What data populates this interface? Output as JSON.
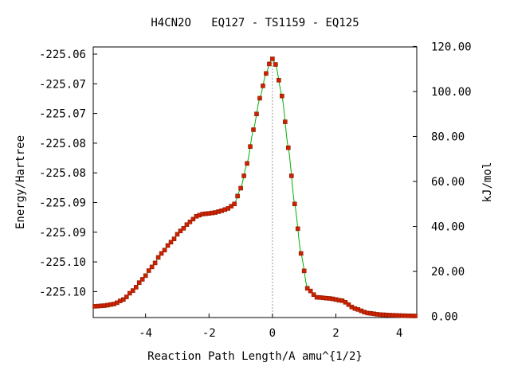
{
  "chart_data": {
    "type": "scatter",
    "title": "H4CN2O   EQ127 - TS1159 - EQ125",
    "xlabel": "Reaction Path Length/A amu^{1/2}",
    "ylabel_left": "Energy/Hartree",
    "ylabel_right": "kJ/mol",
    "xlim": [
      -5.65,
      4.55
    ],
    "ylim_kj": [
      0,
      120
    ],
    "x_ticks": [
      "-4",
      "-2",
      "0",
      "2",
      "4"
    ],
    "y_left_ticks": [
      "-225.06",
      "-225.07",
      "-225.07",
      "-225.08",
      "-225.08",
      "-225.09",
      "-225.09",
      "-225.10",
      "-225.10"
    ],
    "y_right_ticks": [
      "0.00",
      "20.00",
      "40.00",
      "60.00",
      "80.00",
      "100.00",
      "120.00"
    ],
    "ts_x": 0,
    "colors": {
      "curve": "#00b000",
      "points": "#cc2200",
      "points_edge": "#8b1a00",
      "ts_line": "#999999"
    },
    "series": [
      {
        "x": [
          -5.6,
          -5.3,
          -5.0,
          -4.7,
          -4.4,
          -4.1,
          -3.8,
          -3.5,
          -3.2,
          -2.9,
          -2.6,
          -2.4,
          -2.2,
          -2.0,
          -1.8,
          -1.6,
          -1.4,
          -1.2,
          -1.0,
          -0.8,
          -0.6,
          -0.4,
          -0.2,
          -0.05,
          0.0,
          0.1,
          0.3,
          0.5,
          0.7,
          0.9,
          1.1,
          1.4,
          1.8,
          2.2,
          2.6,
          3.0,
          3.4,
          3.8,
          4.2,
          4.55
        ],
        "values_kj": [
          4.5,
          4.8,
          5.5,
          7.5,
          11.5,
          16.5,
          22,
          28,
          33,
          38,
          42,
          44.5,
          45.5,
          45.8,
          46.2,
          47,
          48,
          50,
          57,
          68,
          83,
          97,
          108,
          114,
          114.5,
          112,
          98,
          75,
          50,
          28,
          12.5,
          8.5,
          8,
          7,
          3.5,
          1.5,
          0.8,
          0.5,
          0.3,
          0.2
        ]
      }
    ]
  }
}
